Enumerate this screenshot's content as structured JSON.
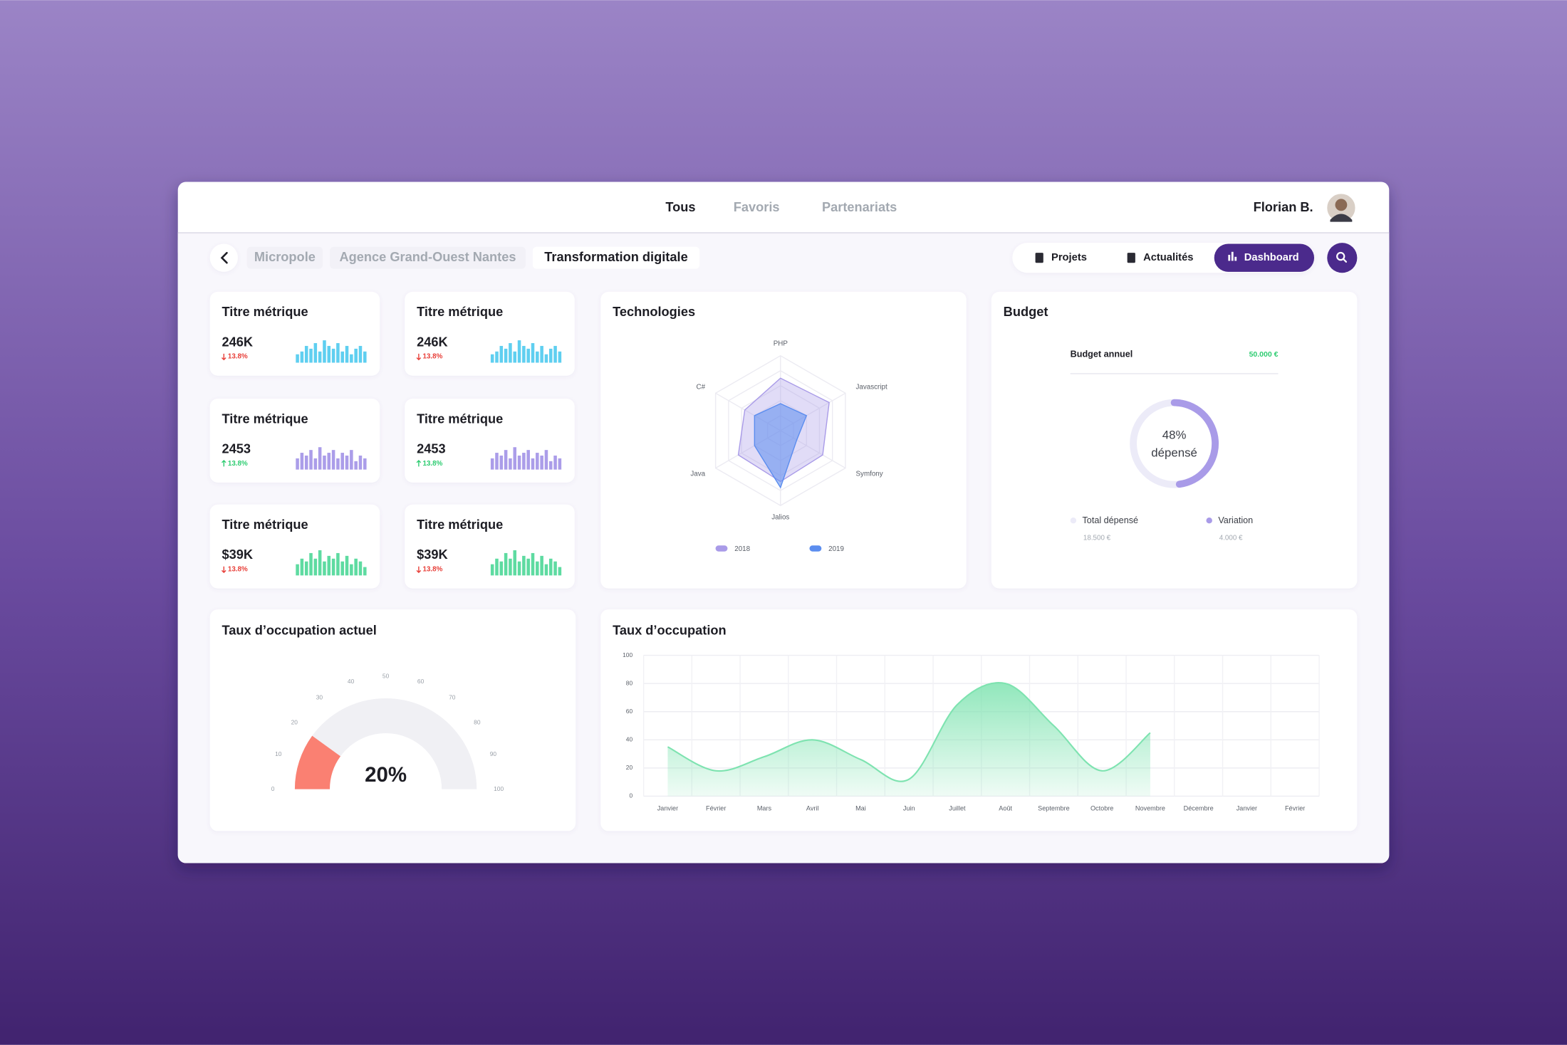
{
  "nav": {
    "tabs": [
      "Tous",
      "Favoris",
      "Partenariats"
    ],
    "active": 0,
    "user": "Florian B."
  },
  "breadcrumb": [
    "Micropole",
    "Agence Grand-Ouest Nantes",
    "Transformation digitale"
  ],
  "actions": [
    "Projets",
    "Actualités",
    "Dashboard"
  ],
  "active_action": 2,
  "metrics": {
    "ylim": [
      0,
      10
    ],
    "cards": [
      {
        "title": "Titre métrique",
        "value": "246K",
        "change": "13.8%",
        "trend": "down",
        "color": "#5fcff0",
        "bars": [
          3,
          4,
          6,
          5,
          7,
          4,
          8,
          6,
          5,
          7,
          4,
          6,
          3,
          5,
          6,
          4
        ]
      },
      {
        "title": "Titre métrique",
        "value": "246K",
        "change": "13.8%",
        "trend": "down",
        "color": "#5fcff0",
        "bars": [
          3,
          4,
          6,
          5,
          7,
          4,
          8,
          6,
          5,
          7,
          4,
          6,
          3,
          5,
          6,
          4
        ]
      },
      {
        "title": "Titre métrique",
        "value": "2453",
        "change": "13.8%",
        "trend": "up",
        "color": "#ab9de9",
        "bars": [
          4,
          6,
          5,
          7,
          4,
          8,
          5,
          6,
          7,
          4,
          6,
          5,
          7,
          3,
          5,
          4
        ]
      },
      {
        "title": "Titre métrique",
        "value": "2453",
        "change": "13.8%",
        "trend": "up",
        "color": "#ab9de9",
        "bars": [
          4,
          6,
          5,
          7,
          4,
          8,
          5,
          6,
          7,
          4,
          6,
          5,
          7,
          3,
          5,
          4
        ]
      },
      {
        "title": "Titre métrique",
        "value": "$39K",
        "change": "13.8%",
        "trend": "down",
        "color": "#5edba1",
        "bars": [
          4,
          6,
          5,
          8,
          6,
          9,
          5,
          7,
          6,
          8,
          5,
          7,
          4,
          6,
          5,
          3
        ]
      },
      {
        "title": "Titre métrique",
        "value": "$39K",
        "change": "13.8%",
        "trend": "down",
        "color": "#5edba1",
        "bars": [
          4,
          6,
          5,
          8,
          6,
          9,
          5,
          7,
          6,
          8,
          5,
          7,
          4,
          6,
          5,
          3
        ]
      }
    ]
  },
  "technologies": {
    "type": "radar",
    "title": "Technologies",
    "axes": [
      "PHP",
      "Javascript",
      "Symfony",
      "Jalios",
      "Java",
      "C#"
    ],
    "rlim": [
      0,
      100
    ],
    "series": [
      {
        "name": "2018",
        "color": "#a99be8",
        "values": [
          70,
          75,
          65,
          68,
          65,
          55
        ]
      },
      {
        "name": "2019",
        "color": "#5b8def",
        "values": [
          36,
          40,
          25,
          76,
          40,
          40
        ]
      }
    ]
  },
  "budget": {
    "type": "donut",
    "title": "Budget",
    "label": "Budget annuel",
    "amount": "50.000 €",
    "value": 48,
    "value_label": "48%",
    "caption": "dépensé",
    "color": "#a99be8",
    "legend": [
      {
        "name": "Total dépensé",
        "amount": "18.500 €",
        "color": "#ecebf8"
      },
      {
        "name": "Variation",
        "amount": "4.000 €",
        "color": "#a99be8"
      }
    ]
  },
  "gauge": {
    "type": "gauge",
    "title": "Taux d’occupation actuel",
    "value": 20,
    "value_label": "20%",
    "lim": [
      0,
      100
    ],
    "ticks": [
      0,
      10,
      20,
      30,
      40,
      50,
      60,
      70,
      80,
      90,
      100
    ],
    "color": "#fa8072"
  },
  "occupation": {
    "type": "area",
    "title": "Taux d’occupation",
    "categories": [
      "Janvier",
      "Février",
      "Mars",
      "Avril",
      "Mai",
      "Juin",
      "Juillet",
      "Août",
      "Septembre",
      "Octobre",
      "Novembre",
      "Décembre",
      "Janvier",
      "Février"
    ],
    "values": [
      35,
      18,
      28,
      40,
      26,
      12,
      65,
      80,
      50,
      18,
      45,
      null,
      null,
      null
    ],
    "ylim": [
      0,
      100
    ],
    "yticks": [
      0,
      20,
      40,
      60,
      80,
      100
    ],
    "grid": true,
    "color": "#7ee3b0"
  }
}
